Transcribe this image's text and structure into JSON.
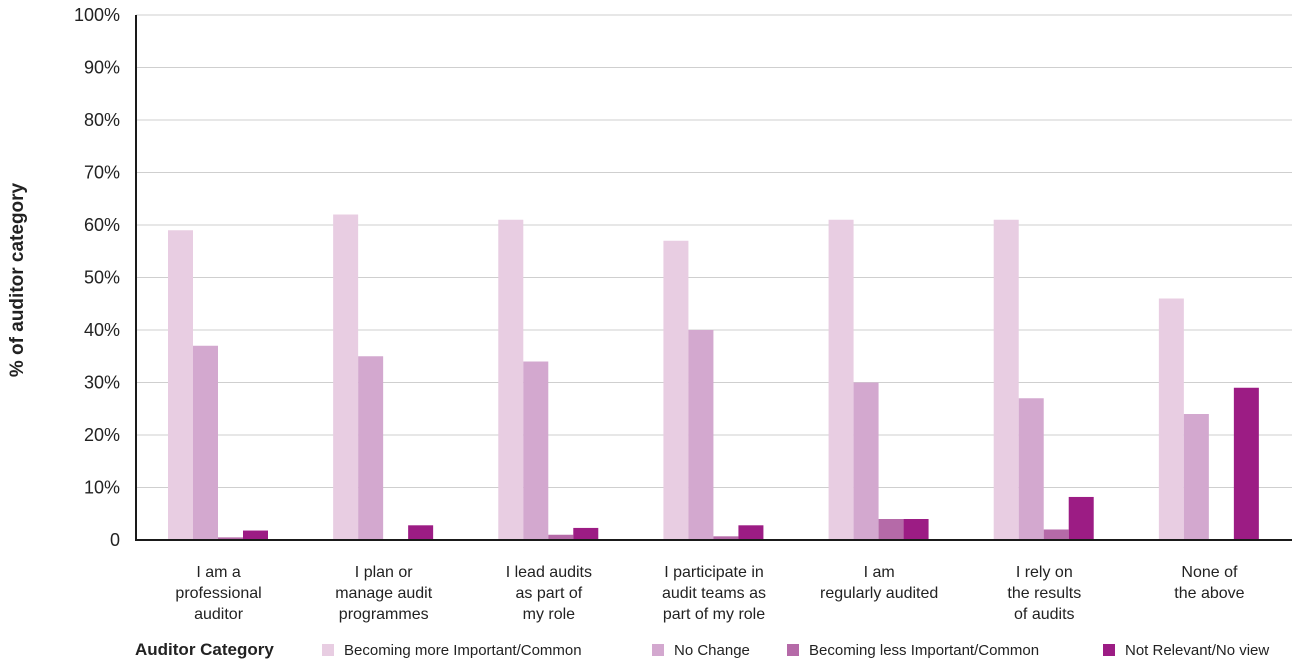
{
  "chart_data": {
    "type": "bar",
    "ylabel": "% of auditor category",
    "legend_title": "Auditor Category",
    "yticks": [
      "0",
      "10%",
      "20%",
      "30%",
      "40%",
      "50%",
      "60%",
      "70%",
      "80%",
      "90%",
      "100%"
    ],
    "ylim": [
      0,
      100
    ],
    "grid": true,
    "legend_position": "bottom",
    "categories": [
      [
        "I am a",
        "professional",
        "auditor"
      ],
      [
        "I plan or",
        "manage audit",
        "programmes"
      ],
      [
        "I lead audits",
        "as part of",
        "my role"
      ],
      [
        "I participate in",
        "audit teams as",
        "part of my role"
      ],
      [
        "I am",
        "regularly audited"
      ],
      [
        "I rely on",
        "the results",
        "of audits"
      ],
      [
        "None of",
        "the above"
      ]
    ],
    "series": [
      {
        "name": "Becoming more Important/Common",
        "color": "#e8cde2",
        "values": [
          59,
          62,
          61,
          57,
          61,
          61,
          46
        ]
      },
      {
        "name": "No Change",
        "color": "#d3a8cf",
        "values": [
          37,
          35,
          34,
          40,
          30,
          27,
          24
        ]
      },
      {
        "name": "Becoming less Important/Common",
        "color": "#b56aa8",
        "values": [
          0.5,
          0,
          1,
          0.7,
          4,
          2,
          0
        ]
      },
      {
        "name": "Not Relevant/No view",
        "color": "#9c1c84",
        "values": [
          1.8,
          2.8,
          2.3,
          2.8,
          4,
          8.2,
          29
        ]
      }
    ]
  }
}
